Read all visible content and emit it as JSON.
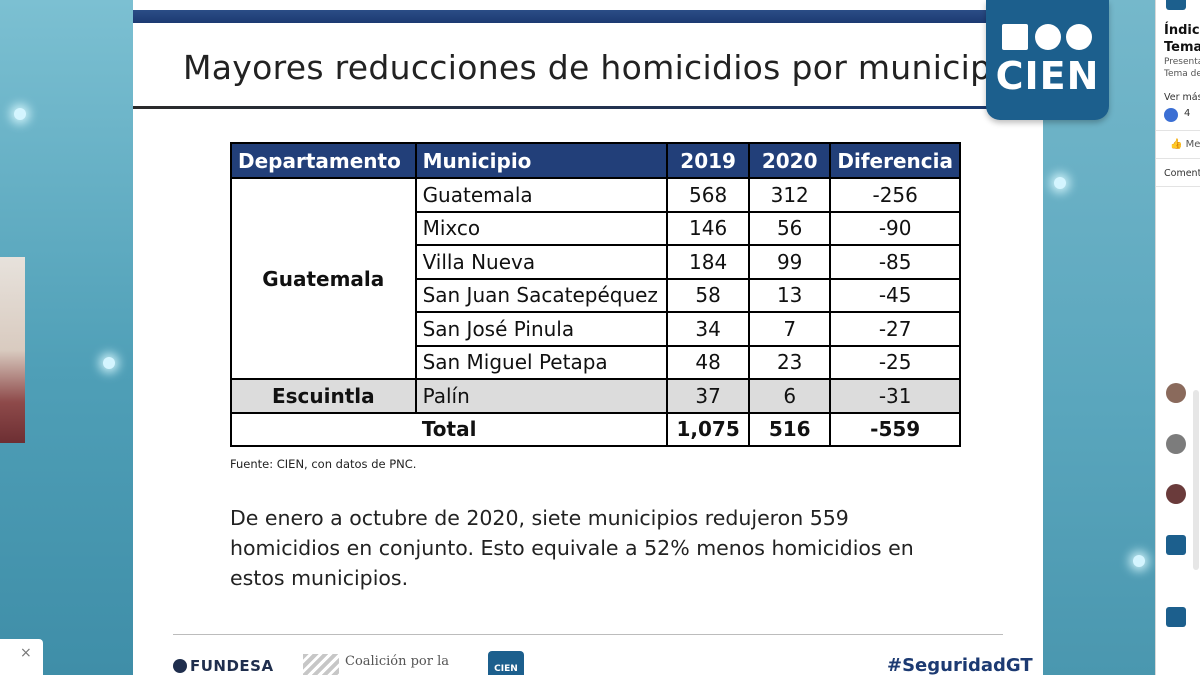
{
  "slide": {
    "title": "Mayores reducciones de homicidios por municipio",
    "logo_text": "CIEN",
    "table": {
      "headers": [
        "Departamento",
        "Municipio",
        "2019",
        "2020",
        "Diferencia"
      ],
      "groups": [
        {
          "departamento": "Guatemala",
          "rows": [
            {
              "municipio": "Guatemala",
              "y2019": "568",
              "y2020": "312",
              "diferencia": "-256"
            },
            {
              "municipio": "Mixco",
              "y2019": "146",
              "y2020": "56",
              "diferencia": "-90"
            },
            {
              "municipio": "Villa Nueva",
              "y2019": "184",
              "y2020": "99",
              "diferencia": "-85"
            },
            {
              "municipio": "San Juan Sacatepéquez",
              "y2019": "58",
              "y2020": "13",
              "diferencia": "-45"
            },
            {
              "municipio": "San José Pinula",
              "y2019": "34",
              "y2020": "7",
              "diferencia": "-27"
            },
            {
              "municipio": "San Miguel Petapa",
              "y2019": "48",
              "y2020": "23",
              "diferencia": "-25"
            }
          ]
        },
        {
          "departamento": "Escuintla",
          "rows": [
            {
              "municipio": "Palín",
              "y2019": "37",
              "y2020": "6",
              "diferencia": "-31"
            }
          ]
        }
      ],
      "total": {
        "label": "Total",
        "y2019": "1,075",
        "y2020": "516",
        "diferencia": "-559"
      }
    },
    "source": "Fuente: CIEN, con datos de PNC.",
    "summary": "De enero a octubre de 2020, siete municipios redujeron 559 homicidios en conjunto. Esto equivale a 52% menos homicidios en estos municipios.",
    "footer": {
      "fundesa": "FUNDESA",
      "coalicion": "Coalición por la",
      "cien_small": "CIEN",
      "hashtag": "#SeguridadGT"
    }
  },
  "sidebar": {
    "title_line1": "Índice",
    "title_line2": "Tema",
    "desc_line1": "Presenta",
    "desc_line2": "Tema de",
    "see_more": "Ver más",
    "like_count": "4",
    "action": "Me",
    "comments": "Comenta"
  },
  "popup": {
    "close": "×"
  },
  "colors": {
    "header_blue": "#223f79",
    "cien_blue": "#1c5f8d",
    "shade_gray": "#dcdcdc"
  }
}
